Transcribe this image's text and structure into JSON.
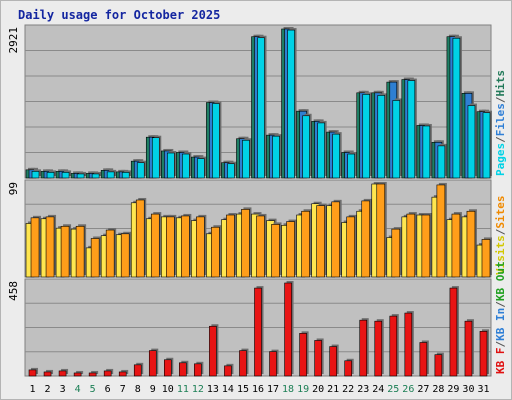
{
  "chart_data": {
    "type": "bar",
    "title": "Daily usage for October 2025",
    "categories": [
      "1",
      "2",
      "3",
      "4",
      "5",
      "6",
      "7",
      "8",
      "9",
      "10",
      "11",
      "12",
      "13",
      "14",
      "15",
      "16",
      "17",
      "18",
      "19",
      "20",
      "21",
      "22",
      "23",
      "24",
      "25",
      "26",
      "27",
      "28",
      "29",
      "30",
      "31"
    ],
    "weekend_days": [
      "4",
      "5",
      "11",
      "12",
      "18",
      "19",
      "25",
      "26"
    ],
    "panels": [
      {
        "name": "hits-files-pages",
        "ymax_label": "2921",
        "ymax": 2921,
        "legend": [
          {
            "label": "Pages",
            "color": "#00d2e6"
          },
          {
            "label": "/",
            "color": "#555555"
          },
          {
            "label": "Files",
            "color": "#2f7fd6"
          },
          {
            "label": "/",
            "color": "#555555"
          },
          {
            "label": "Hits",
            "color": "#237a5a"
          }
        ],
        "series": [
          {
            "name": "Hits",
            "color": "#1e7f64",
            "values": [
              160,
              130,
              130,
              90,
              90,
              150,
              120,
              330,
              800,
              530,
              500,
              410,
              1480,
              300,
              770,
              2770,
              840,
              2921,
              1310,
              1110,
              900,
              500,
              1670,
              1670,
              1880,
              1930,
              1030,
              700,
              2770,
              1660,
              1300
            ]
          },
          {
            "name": "Files",
            "color": "#2e7fd2",
            "values": [
              160,
              130,
              130,
              90,
              90,
              150,
              120,
              330,
              800,
              530,
              500,
              410,
              1480,
              300,
              770,
              2770,
              840,
              2921,
              1310,
              1110,
              900,
              500,
              1670,
              1670,
              1880,
              1930,
              1030,
              700,
              2770,
              1660,
              1300
            ]
          },
          {
            "name": "Pages",
            "color": "#00d2e6",
            "values": [
              130,
              110,
              110,
              80,
              80,
              120,
              110,
              300,
              790,
              490,
              470,
              380,
              1460,
              280,
              740,
              2750,
              820,
              2900,
              1220,
              1080,
              860,
              470,
              1640,
              1620,
              1520,
              1910,
              1020,
              630,
              2740,
              1420,
              1280
            ]
          }
        ]
      },
      {
        "name": "visits-sites",
        "ymax_label": "99",
        "ymax": 99,
        "legend": [
          {
            "label": "Visits",
            "color": "#d2c800"
          },
          {
            "label": "/",
            "color": "#555555"
          },
          {
            "label": "Sites",
            "color": "#f08a00"
          }
        ],
        "series": [
          {
            "name": "Visits",
            "color": "#ffe650",
            "values": [
              57,
              62,
              52,
              51,
              31,
              44,
              45,
              79,
              62,
              64,
              63,
              60,
              46,
              61,
              67,
              67,
              60,
              55,
              66,
              78,
              76,
              58,
              70,
              99,
              42,
              64,
              66,
              85,
              61,
              64,
              34
            ]
          },
          {
            "name": "Sites",
            "color": "#ff9e1a",
            "values": [
              63,
              64,
              54,
              54,
              41,
              50,
              46,
              82,
              67,
              64,
              65,
              64,
              53,
              66,
              72,
              65,
              56,
              59,
              70,
              76,
              80,
              64,
              81,
              99,
              51,
              67,
              66,
              98,
              67,
              70,
              40
            ]
          }
        ]
      },
      {
        "name": "kbf-kbin-kbout",
        "ymax_label": "458",
        "ymax": 458,
        "legend": [
          {
            "label": "KB F",
            "color": "#e01010"
          },
          {
            "label": "/",
            "color": "#555555"
          },
          {
            "label": "KB In",
            "color": "#2f7fd6"
          },
          {
            "label": "/",
            "color": "#555555"
          },
          {
            "label": "KB Out",
            "color": "#20a020"
          }
        ],
        "series": [
          {
            "name": "KB F",
            "color": "#e81414",
            "values": [
              30,
              20,
              25,
              15,
              15,
              25,
              20,
              55,
              125,
              80,
              65,
              60,
              245,
              50,
              125,
              433,
              120,
              458,
              210,
              175,
              145,
              75,
              275,
              270,
              295,
              310,
              165,
              105,
              433,
              270,
              220
            ]
          }
        ]
      }
    ]
  }
}
